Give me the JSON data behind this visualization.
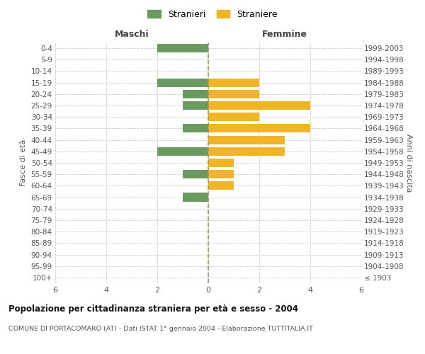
{
  "age_groups": [
    "100+",
    "95-99",
    "90-94",
    "85-89",
    "80-84",
    "75-79",
    "70-74",
    "65-69",
    "60-64",
    "55-59",
    "50-54",
    "45-49",
    "40-44",
    "35-39",
    "30-34",
    "25-29",
    "20-24",
    "15-19",
    "10-14",
    "5-9",
    "0-4"
  ],
  "birth_years": [
    "≤ 1903",
    "1904-1908",
    "1909-1913",
    "1914-1918",
    "1919-1923",
    "1924-1928",
    "1929-1933",
    "1934-1938",
    "1939-1943",
    "1944-1948",
    "1949-1953",
    "1954-1958",
    "1959-1963",
    "1964-1968",
    "1969-1973",
    "1974-1978",
    "1979-1983",
    "1984-1988",
    "1989-1993",
    "1994-1998",
    "1999-2003"
  ],
  "males": [
    0,
    0,
    0,
    0,
    0,
    0,
    0,
    1,
    0,
    1,
    0,
    2,
    0,
    1,
    0,
    1,
    1,
    2,
    0,
    0,
    2
  ],
  "females": [
    0,
    0,
    0,
    0,
    0,
    0,
    0,
    0,
    1,
    1,
    1,
    3,
    3,
    4,
    2,
    4,
    2,
    2,
    0,
    0,
    0
  ],
  "male_color": "#6a9a5f",
  "female_color": "#f0b429",
  "grid_color": "#cccccc",
  "center_line_color": "#999966",
  "title": "Popolazione per cittadinanza straniera per età e sesso - 2004",
  "subtitle": "COMUNE DI PORTACOMARO (AT) - Dati ISTAT 1° gennaio 2004 - Elaborazione TUTTITALIA.IT",
  "xlabel_left": "Maschi",
  "xlabel_right": "Femmine",
  "ylabel_left": "Fasce di età",
  "ylabel_right": "Anni di nascita",
  "legend_male": "Stranieri",
  "legend_female": "Straniere",
  "xlim": 6
}
